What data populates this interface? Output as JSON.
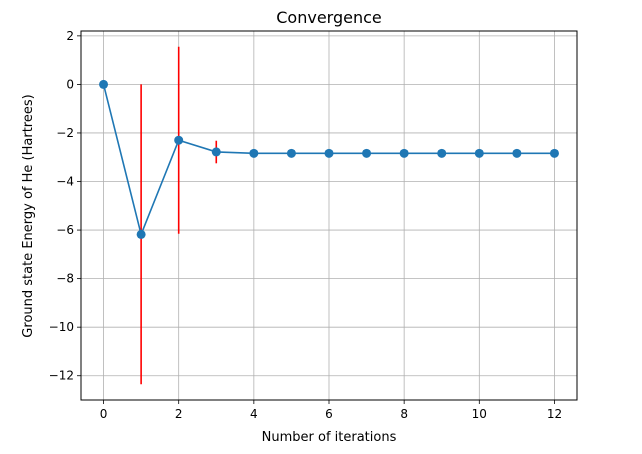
{
  "chart_data": {
    "type": "line",
    "title": "Convergence",
    "xlabel": "Number of iterations",
    "ylabel": "Ground state Energy of He (Hartrees)",
    "xlim": [
      -0.6,
      12.6
    ],
    "ylim": [
      -13.0,
      2.2
    ],
    "x_ticks": [
      0,
      2,
      4,
      6,
      8,
      10,
      12
    ],
    "x_tick_labels": [
      "0",
      "2",
      "4",
      "6",
      "8",
      "10",
      "12"
    ],
    "y_ticks": [
      2,
      0,
      -2,
      -4,
      -6,
      -8,
      -10,
      -12
    ],
    "y_tick_labels": [
      "2",
      "0",
      "−2",
      "−4",
      "−6",
      "−8",
      "−10",
      "−12"
    ],
    "grid": true,
    "legend": "none",
    "series": [
      {
        "x": [
          0,
          1,
          2,
          3,
          4,
          5,
          6,
          7,
          8,
          9,
          10,
          11,
          12
        ],
        "y": [
          0.0,
          -6.18,
          -2.3,
          -2.78,
          -2.84,
          -2.84,
          -2.84,
          -2.84,
          -2.84,
          -2.84,
          -2.84,
          -2.84,
          -2.84
        ],
        "err_low": [
          0.0,
          -12.35,
          -6.15,
          -3.25,
          -2.84,
          -2.84,
          -2.84,
          -2.84,
          -2.84,
          -2.84,
          -2.84,
          -2.84,
          -2.84
        ],
        "err_high": [
          0.0,
          0.0,
          1.55,
          -2.32,
          -2.84,
          -2.84,
          -2.84,
          -2.84,
          -2.84,
          -2.84,
          -2.84,
          -2.84,
          -2.84
        ],
        "color": "#1f77b4",
        "error_color": "#ff0000"
      }
    ]
  }
}
